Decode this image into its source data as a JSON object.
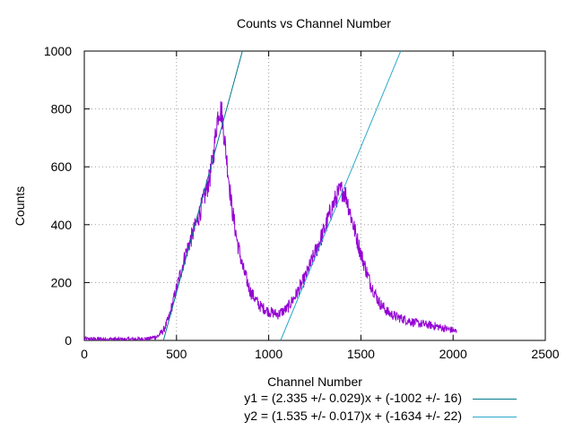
{
  "chart_data": {
    "type": "line",
    "title": "Counts vs Channel Number",
    "xlabel": "Channel Number",
    "ylabel": "Counts",
    "xlim": [
      0,
      2500
    ],
    "ylim": [
      0,
      1000
    ],
    "xticks": [
      "0",
      "500",
      "1000",
      "1500",
      "2000",
      "2500"
    ],
    "yticks": [
      "0",
      "200",
      "400",
      "600",
      "800",
      "1000"
    ],
    "grid": true,
    "legend_position": "bottom-right",
    "series": [
      {
        "color": "#9400d3",
        "style": "noisy-spectrum",
        "x": [
          0,
          100,
          200,
          300,
          350,
          400,
          430,
          460,
          500,
          550,
          600,
          640,
          680,
          700,
          720,
          730,
          745,
          760,
          780,
          800,
          830,
          860,
          900,
          950,
          1000,
          1050,
          1100,
          1150,
          1200,
          1250,
          1300,
          1350,
          1380,
          1400,
          1420,
          1450,
          1500,
          1550,
          1600,
          1650,
          1700,
          1750,
          1800,
          1850,
          1900,
          1950,
          2000,
          2020
        ],
        "values": [
          5,
          5,
          4,
          5,
          6,
          15,
          35,
          80,
          180,
          300,
          390,
          470,
          560,
          640,
          760,
          800,
          790,
          700,
          580,
          460,
          340,
          250,
          170,
          120,
          100,
          90,
          110,
          160,
          220,
          300,
          380,
          470,
          510,
          520,
          500,
          420,
          300,
          200,
          130,
          95,
          80,
          70,
          60,
          55,
          50,
          42,
          35,
          30
        ]
      },
      {
        "name": "y1 = (2.335 +/- 0.029)x + (-1002 +/- 16)",
        "color": "#007a8c",
        "slope": 2.335,
        "intercept": -1002,
        "x_range": [
          429,
          858
        ]
      },
      {
        "name": "y2 = (1.535 +/- 0.017)x + (-1634 +/- 22)",
        "color": "#2aa9c9",
        "slope": 1.535,
        "intercept": -1634,
        "x_range": [
          1065,
          1716
        ]
      }
    ]
  }
}
